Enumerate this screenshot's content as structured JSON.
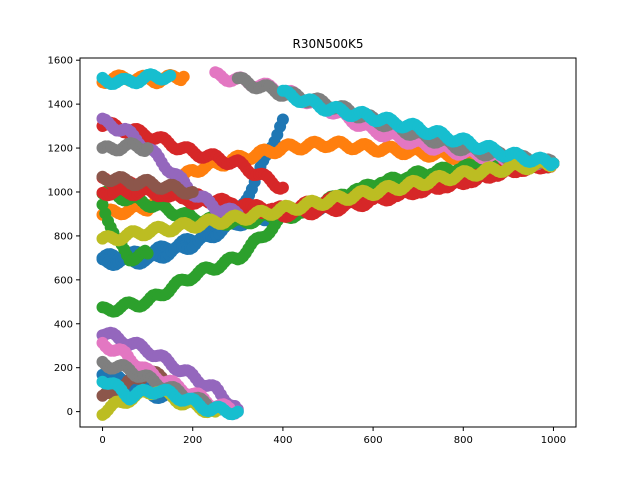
{
  "chart_data": {
    "type": "scatter",
    "title": "R30N500K5",
    "xlabel": "",
    "ylabel": "",
    "xlim": [
      -50,
      1050
    ],
    "ylim": [
      -70,
      1610
    ],
    "xticks": [
      0,
      200,
      400,
      600,
      800,
      1000
    ],
    "yticks": [
      0,
      200,
      400,
      600,
      800,
      1000,
      1200,
      1400,
      1600
    ],
    "grid": false,
    "legend": "none",
    "colors": [
      "#1f77b4",
      "#ff7f0e",
      "#2ca02c",
      "#d62728",
      "#9467bd",
      "#8c564b",
      "#e377c2",
      "#7f7f7f",
      "#bcbd22",
      "#17becf"
    ],
    "series": [
      {
        "color": "#1f77b4",
        "x": [
          0,
          100,
          200,
          300,
          350,
          400
        ],
        "y": [
          700,
          720,
          780,
          900,
          1100,
          1330
        ]
      },
      {
        "color": "#1f77b4",
        "x": [
          0,
          60,
          130,
          200,
          260
        ],
        "y": [
          180,
          120,
          70,
          40,
          10
        ]
      },
      {
        "color": "#1f77b4",
        "x": [
          0,
          100,
          200,
          300,
          400,
          500,
          600,
          700,
          800,
          900,
          1000
        ],
        "y": [
          680,
          690,
          760,
          860,
          900,
          940,
          1000,
          1040,
          1080,
          1110,
          1130
        ]
      },
      {
        "color": "#ff7f0e",
        "x": [
          0,
          100,
          200,
          300,
          400,
          500,
          600,
          700,
          800,
          900,
          1000
        ],
        "y": [
          900,
          930,
          1100,
          1150,
          1200,
          1220,
          1200,
          1180,
          1160,
          1140,
          1130
        ]
      },
      {
        "color": "#ff7f0e",
        "x": [
          0,
          60,
          120,
          180
        ],
        "y": [
          1510,
          1520,
          1510,
          1525
        ]
      },
      {
        "color": "#2ca02c",
        "x": [
          0,
          100,
          200,
          300,
          400,
          500,
          600,
          700,
          800,
          900,
          1000
        ],
        "y": [
          460,
          500,
          620,
          700,
          880,
          960,
          1020,
          1060,
          1090,
          1110,
          1130
        ]
      },
      {
        "color": "#2ca02c",
        "x": [
          0,
          100,
          200,
          300,
          400,
          500,
          600,
          700,
          800,
          900,
          1000
        ],
        "y": [
          1000,
          950,
          880,
          860,
          900,
          950,
          1030,
          1080,
          1110,
          1125,
          1130
        ]
      },
      {
        "color": "#2ca02c",
        "x": [
          0,
          30,
          60,
          100
        ],
        "y": [
          950,
          780,
          700,
          720
        ]
      },
      {
        "color": "#d62728",
        "x": [
          0,
          100,
          200,
          300,
          400,
          500,
          600,
          700,
          800,
          900,
          1000
        ],
        "y": [
          1050,
          1020,
          960,
          930,
          920,
          960,
          980,
          1010,
          1050,
          1100,
          1130
        ]
      },
      {
        "color": "#d62728",
        "x": [
          0,
          100,
          200,
          300,
          400
        ],
        "y": [
          1310,
          1260,
          1180,
          1130,
          1020
        ]
      },
      {
        "color": "#d62728",
        "x": [
          0,
          100,
          200,
          300,
          400,
          500,
          600,
          700,
          800,
          900,
          1000
        ],
        "y": [
          1000,
          1000,
          980,
          940,
          900,
          920,
          960,
          1010,
          1050,
          1100,
          1130
        ]
      },
      {
        "color": "#9467bd",
        "x": [
          0,
          50,
          100,
          150,
          200,
          250,
          300
        ],
        "y": [
          1320,
          1280,
          1200,
          1100,
          1000,
          930,
          900
        ]
      },
      {
        "color": "#9467bd",
        "x": [
          0,
          100,
          200,
          250,
          300
        ],
        "y": [
          360,
          280,
          160,
          100,
          10
        ]
      },
      {
        "color": "#8c564b",
        "x": [
          0,
          50,
          100,
          150,
          200
        ],
        "y": [
          1070,
          1050,
          1040,
          1020,
          1000
        ]
      },
      {
        "color": "#8c564b",
        "x": [
          0,
          50,
          100,
          150
        ],
        "y": [
          60,
          120,
          180,
          140
        ]
      },
      {
        "color": "#e377c2",
        "x": [
          250,
          300,
          400,
          500,
          600,
          700,
          800,
          900,
          1000
        ],
        "y": [
          1530,
          1510,
          1460,
          1380,
          1280,
          1220,
          1180,
          1150,
          1130
        ]
      },
      {
        "color": "#e377c2",
        "x": [
          0,
          50,
          100,
          150,
          200,
          250,
          300
        ],
        "y": [
          310,
          260,
          180,
          130,
          80,
          30,
          0
        ]
      },
      {
        "color": "#7f7f7f",
        "x": [
          0,
          50,
          100
        ],
        "y": [
          1190,
          1210,
          1200
        ]
      },
      {
        "color": "#7f7f7f",
        "x": [
          300,
          400,
          500,
          600,
          700,
          800,
          900,
          1000
        ],
        "y": [
          1510,
          1450,
          1400,
          1330,
          1260,
          1200,
          1160,
          1130
        ]
      },
      {
        "color": "#7f7f7f",
        "x": [
          0,
          60,
          120,
          200,
          260
        ],
        "y": [
          220,
          190,
          130,
          60,
          10
        ]
      },
      {
        "color": "#bcbd22",
        "x": [
          0,
          100,
          200,
          300,
          400,
          500,
          600,
          700,
          800,
          900,
          1000
        ],
        "y": [
          780,
          820,
          850,
          880,
          920,
          960,
          1000,
          1040,
          1080,
          1110,
          1130
        ]
      },
      {
        "color": "#bcbd22",
        "x": [
          0,
          60,
          120,
          180,
          250
        ],
        "y": [
          0,
          60,
          100,
          40,
          0
        ]
      },
      {
        "color": "#17becf",
        "x": [
          0,
          50,
          100,
          150
        ],
        "y": [
          1510,
          1500,
          1520,
          1530
        ]
      },
      {
        "color": "#17becf",
        "x": [
          400,
          500,
          600,
          700,
          800,
          900,
          1000
        ],
        "y": [
          1450,
          1380,
          1340,
          1290,
          1230,
          1170,
          1130
        ]
      },
      {
        "color": "#17becf",
        "x": [
          0,
          60,
          120,
          180,
          240,
          300
        ],
        "y": [
          150,
          70,
          100,
          60,
          10,
          0
        ]
      }
    ]
  }
}
